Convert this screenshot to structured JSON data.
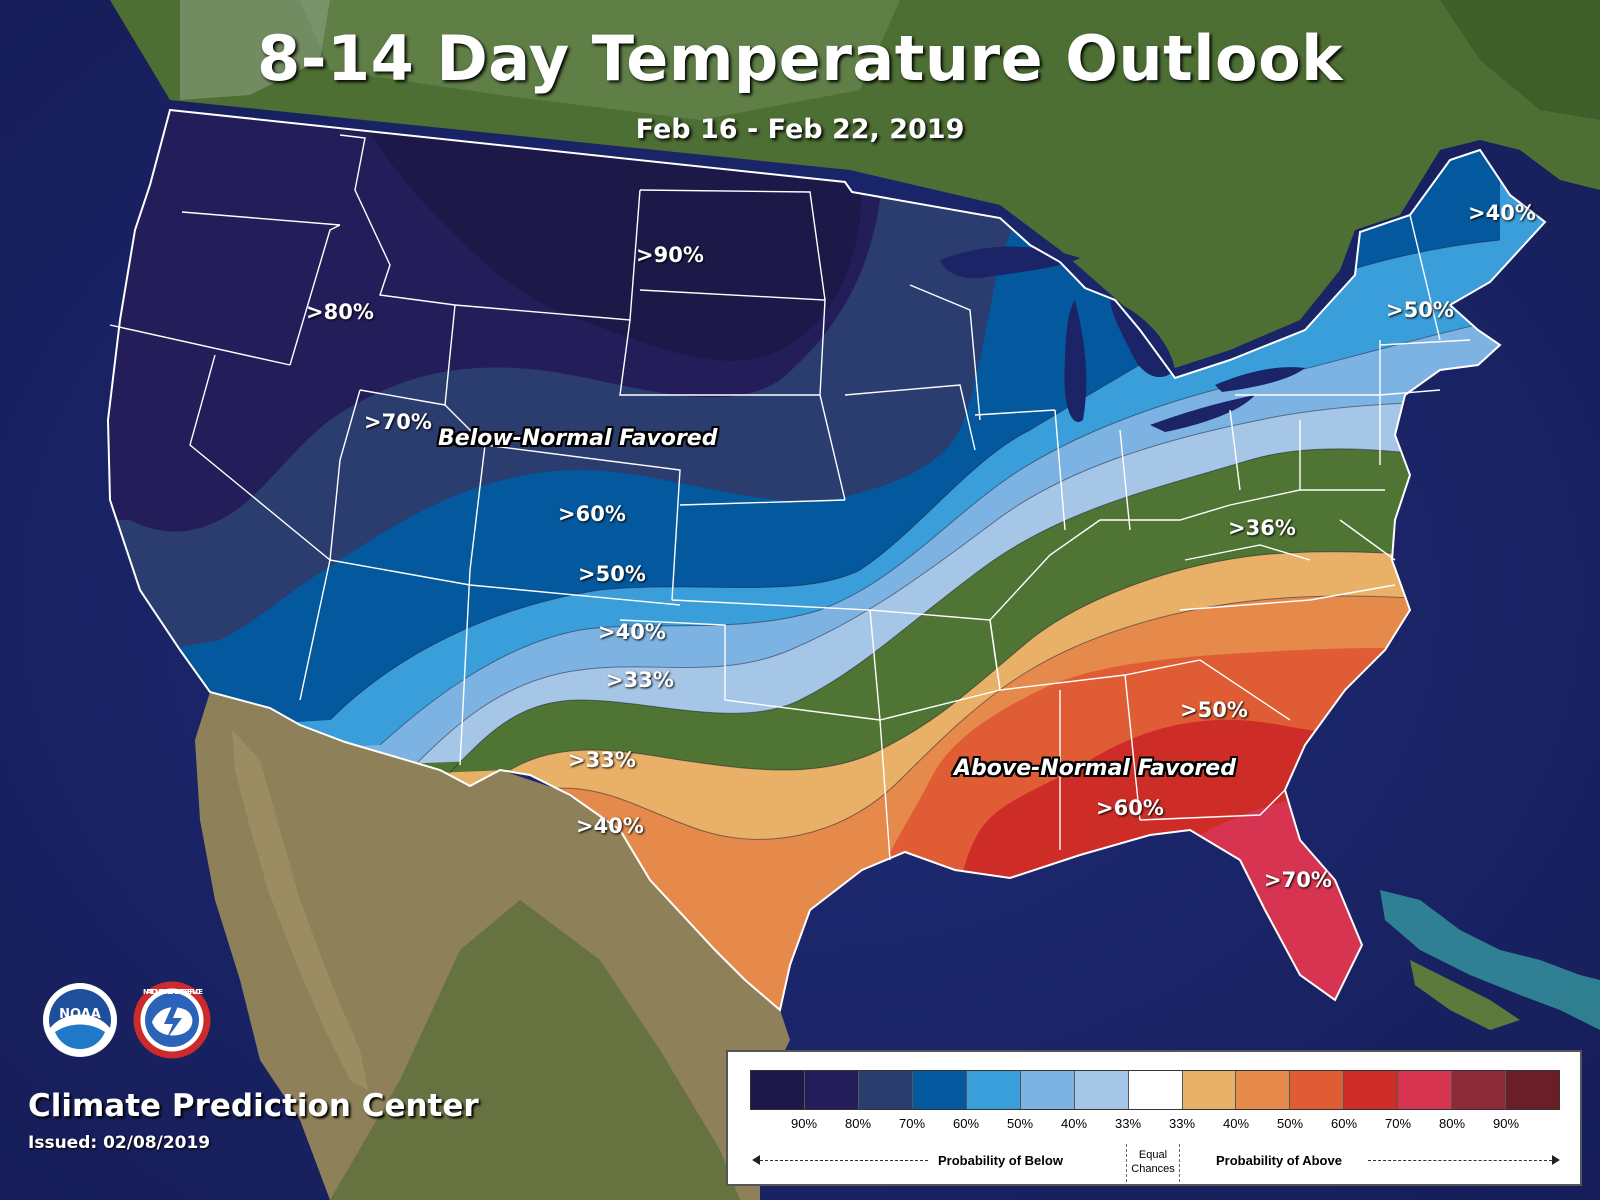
{
  "header": {
    "title": "8-14 Day Temperature Outlook",
    "date_range": "Feb 16 - Feb 22, 2019"
  },
  "regions": {
    "below": "Below-Normal Favored",
    "above": "Above-Normal Favored"
  },
  "map_labels": [
    {
      "id": "below-90",
      "text": ">90%"
    },
    {
      "id": "below-80",
      "text": ">80%"
    },
    {
      "id": "below-70",
      "text": ">70%"
    },
    {
      "id": "below-60",
      "text": ">60%"
    },
    {
      "id": "below-50-west",
      "text": ">50%"
    },
    {
      "id": "below-40-west",
      "text": ">40%"
    },
    {
      "id": "below-33-west",
      "text": ">33%"
    },
    {
      "id": "below-50-ne",
      "text": ">50%"
    },
    {
      "id": "below-40-me",
      "text": ">40%"
    },
    {
      "id": "above-36",
      "text": ">36%"
    },
    {
      "id": "above-33-sw",
      "text": ">33%"
    },
    {
      "id": "above-40-sw",
      "text": ">40%"
    },
    {
      "id": "above-50-se",
      "text": ">50%"
    },
    {
      "id": "above-60-se",
      "text": ">60%"
    },
    {
      "id": "above-70-fl",
      "text": ">70%"
    }
  ],
  "legend": {
    "colors": [
      "#1c1848",
      "#231d5a",
      "#2b3c6f",
      "#04589e",
      "#3a9edb",
      "#7db3e2",
      "#a6c6e8",
      "#ffffff",
      "#e9b068",
      "#e58a4a",
      "#e05c35",
      "#ce2c27",
      "#d63450",
      "#8c2a3a",
      "#6a1e27"
    ],
    "ticks": [
      "90%",
      "80%",
      "70%",
      "60%",
      "50%",
      "40%",
      "33%",
      "33%",
      "40%",
      "50%",
      "60%",
      "70%",
      "80%",
      "90%"
    ],
    "below_caption": "Probability of Below",
    "above_caption": "Probability of Above",
    "equal_line1": "Equal",
    "equal_line2": "Chances"
  },
  "footer": {
    "org": "Climate Prediction Center",
    "issued": "Issued: 02/08/2019",
    "noaa_logo_text": "NOAA",
    "nws_logo_text": "NATIONAL WEATHER SERVICE"
  },
  "colors": {
    "ocean": "#1a2466",
    "land_green": "#4a6e2e",
    "land_desert": "#8a7c55"
  }
}
